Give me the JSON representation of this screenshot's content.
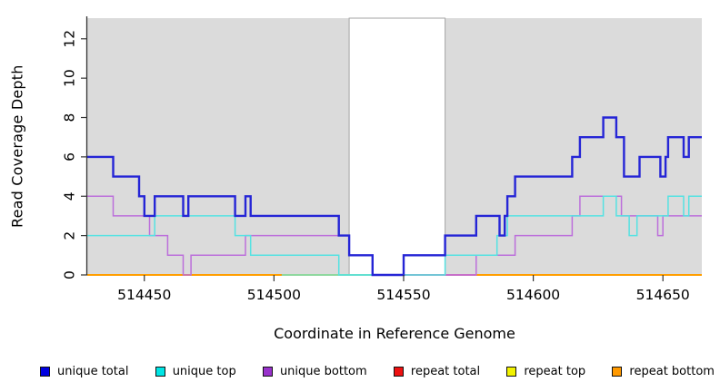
{
  "figure": {
    "ylabel": "Read Coverage Depth",
    "xlabel": "Coordinate in Reference Genome"
  },
  "chart_data": {
    "type": "line",
    "subtype": "step-after",
    "title": "",
    "xlabel": "Coordinate in Reference Genome",
    "ylabel": "Read Coverage Depth",
    "xlim": [
      514428,
      514665
    ],
    "ylim": [
      0,
      13.05
    ],
    "x_ticks": [
      514450,
      514500,
      514550,
      514600,
      514650
    ],
    "y_ticks": [
      0,
      2,
      4,
      6,
      8,
      10,
      12
    ],
    "grid": "off",
    "plot_bg": "#dbdbdb",
    "axis_color": "#333333",
    "masked_region": {
      "from": 514529,
      "to": 514566,
      "fill": "#ffffff",
      "border": "#a3a3a3"
    },
    "series": [
      {
        "name": "unique total",
        "color": "#2525d6",
        "legend_color": "#0000e0",
        "width": 2.4,
        "steps": [
          [
            514428,
            6
          ],
          [
            514438,
            5
          ],
          [
            514448,
            4
          ],
          [
            514450,
            3
          ],
          [
            514454,
            4
          ],
          [
            514465,
            3
          ],
          [
            514467,
            4
          ],
          [
            514485,
            3
          ],
          [
            514489,
            4
          ],
          [
            514491,
            3
          ],
          [
            514525,
            2
          ],
          [
            514529,
            1
          ],
          [
            514538,
            0
          ],
          [
            514550,
            1
          ],
          [
            514566,
            2
          ],
          [
            514578,
            3
          ],
          [
            514587,
            2
          ],
          [
            514589,
            3
          ],
          [
            514590,
            4
          ],
          [
            514593,
            5
          ],
          [
            514615,
            6
          ],
          [
            514618,
            7
          ],
          [
            514627,
            8
          ],
          [
            514632,
            7
          ],
          [
            514635,
            5
          ],
          [
            514641,
            6
          ],
          [
            514649,
            5
          ],
          [
            514651,
            6
          ],
          [
            514652,
            7
          ],
          [
            514658,
            6
          ],
          [
            514660,
            7
          ],
          [
            514665,
            7
          ]
        ]
      },
      {
        "name": "unique top",
        "color": "#55e2e2",
        "legend_color": "#00e5e5",
        "width": 1.5,
        "steps": [
          [
            514428,
            2
          ],
          [
            514454,
            3
          ],
          [
            514485,
            2
          ],
          [
            514491,
            1
          ],
          [
            514525,
            0
          ],
          [
            514566,
            1
          ],
          [
            514586,
            2
          ],
          [
            514590,
            3
          ],
          [
            514627,
            4
          ],
          [
            514632,
            3
          ],
          [
            514637,
            2
          ],
          [
            514640,
            3
          ],
          [
            514652,
            4
          ],
          [
            514658,
            3
          ],
          [
            514660,
            4
          ],
          [
            514665,
            4
          ]
        ]
      },
      {
        "name": "unique bottom",
        "color": "#bc6fdb",
        "legend_color": "#9932cc",
        "width": 1.5,
        "steps": [
          [
            514428,
            4
          ],
          [
            514438,
            3
          ],
          [
            514452,
            2
          ],
          [
            514459,
            1
          ],
          [
            514465,
            0
          ],
          [
            514468,
            1
          ],
          [
            514489,
            2
          ],
          [
            514529,
            1
          ],
          [
            514538,
            0
          ],
          [
            514578,
            1
          ],
          [
            514593,
            2
          ],
          [
            514615,
            3
          ],
          [
            514618,
            4
          ],
          [
            514634,
            3
          ],
          [
            514648,
            2
          ],
          [
            514650,
            3
          ],
          [
            514665,
            3
          ]
        ]
      },
      {
        "name": "repeat total",
        "color": "#e8486e",
        "legend_color": "#ee1111",
        "width": 1.5,
        "steps": [
          [
            514428,
            0
          ],
          [
            514665,
            0
          ]
        ]
      },
      {
        "name": "repeat top",
        "color": "#f2f200",
        "legend_color": "#f2f200",
        "width": 1.5,
        "steps": [
          [
            514428,
            0
          ],
          [
            514665,
            0
          ]
        ]
      },
      {
        "name": "repeat bottom",
        "color": "#ff9e00",
        "legend_color": "#ff9900",
        "width": 2,
        "steps": [
          [
            514428,
            0
          ],
          [
            514665,
            0
          ]
        ]
      }
    ],
    "baseline_overlap_segments": [
      {
        "from": 514428,
        "to": 514503,
        "color": "#ff9e00"
      },
      {
        "from": 514503,
        "to": 514538,
        "color": "#8fd89f"
      },
      {
        "from": 514538,
        "to": 514550,
        "color": "#7a70dd"
      },
      {
        "from": 514550,
        "to": 514578,
        "color": "#e8708d"
      },
      {
        "from": 514578,
        "to": 514665,
        "color": "#ff9e00"
      }
    ],
    "legend_position": "bottom"
  }
}
